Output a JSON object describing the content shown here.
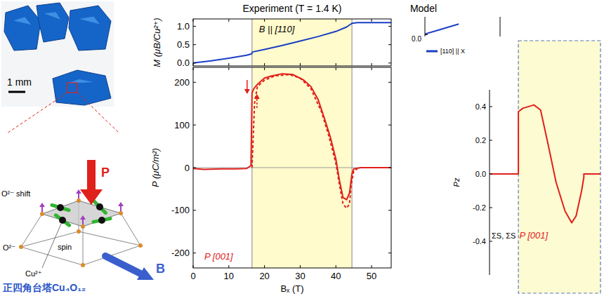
{
  "chart_data": [
    {
      "type": "line",
      "title": "Experiment (T = 1.4 K)",
      "ylabel": "M (μB/Cu²⁺)",
      "annotations": [
        "B || [110]"
      ],
      "xlim": [
        0,
        55.5
      ],
      "xticks": [
        0,
        10,
        20,
        30,
        40,
        50
      ],
      "ylim": [
        -0.08,
        1.2
      ],
      "yticks": [
        {
          "value": 0,
          "label": "0.0"
        },
        0.5,
        {
          "value": 1,
          "label": "1.0"
        }
      ],
      "tick_labels": "y",
      "shaded_range": [
        16.5,
        44.5
      ],
      "series": [
        {
          "color": "#1a3fc4",
          "line_style": "solid",
          "x": [
            0,
            5,
            10,
            15,
            16.4,
            16.6,
            20,
            25,
            30,
            35,
            40,
            43,
            44.5,
            46,
            50,
            55.5
          ],
          "values": [
            0,
            0.06,
            0.13,
            0.21,
            0.25,
            0.3,
            0.37,
            0.48,
            0.6,
            0.72,
            0.86,
            0.98,
            1.08,
            1.1,
            1.1,
            1.1
          ]
        }
      ]
    },
    {
      "type": "line",
      "xlabel": "Bₓ (T)",
      "ylabel": "P (μC/m²)",
      "annotations": [
        "P [001]"
      ],
      "xlim": [
        0,
        55.5
      ],
      "xticks": [
        0,
        10,
        20,
        30,
        40,
        50
      ],
      "ylim": [
        -235,
        235
      ],
      "yticks": [
        -200,
        -100,
        0,
        100,
        200
      ],
      "shaded_range": [
        16.5,
        44.5
      ],
      "series": [
        {
          "color": "#e0201b",
          "line_style": "solid",
          "x": [
            0,
            3,
            8,
            12,
            15,
            16.2,
            16.5,
            17,
            18,
            20,
            22,
            25,
            28,
            31,
            33,
            35,
            37,
            38.5,
            40,
            41,
            42,
            43,
            43.8,
            44.5,
            45,
            47,
            55.5
          ],
          "values": [
            -2,
            -4,
            -3,
            -3,
            -2,
            5,
            175,
            185,
            195,
            210,
            215,
            220,
            218,
            205,
            190,
            160,
            110,
            70,
            20,
            -30,
            -70,
            -75,
            -60,
            -15,
            -3,
            0,
            0
          ]
        },
        {
          "color": "#e0201b",
          "line_style": "dashed",
          "x": [
            16.5,
            17.2,
            18,
            20,
            23,
            27,
            30,
            33,
            36,
            38,
            40,
            41,
            42,
            43,
            43.8,
            44.3,
            45,
            46
          ],
          "values": [
            0,
            150,
            190,
            205,
            215,
            218,
            210,
            185,
            130,
            75,
            10,
            -40,
            -85,
            -95,
            -85,
            -40,
            -8,
            -3
          ]
        }
      ]
    },
    {
      "type": "line",
      "title": "Model",
      "xlim": [
        0,
        1
      ],
      "ylim": [
        -0.05,
        0.5
      ],
      "yticks": [
        {
          "value": 0,
          "label": "0.0"
        }
      ],
      "tick_labels": "y",
      "legend": "bottom",
      "series": [
        {
          "name": "[110] || X",
          "color": "#1a3fc4",
          "line_style": "solid",
          "x": [
            0,
            0.2,
            0.45
          ],
          "values": [
            0.02,
            0.14,
            0.3
          ]
        }
      ]
    },
    {
      "type": "line",
      "ylabel": "Pz",
      "annotations": [
        "ΣS, ΣS",
        "P [001]"
      ],
      "xlim": [
        0,
        1
      ],
      "ylim": [
        -0.6,
        0.5
      ],
      "yticks": [
        -0.4,
        -0.2,
        {
          "value": 0,
          "label": "0.0"
        },
        0.2,
        0.4
      ],
      "tick_labels": "y",
      "shaded_range": [
        0.26,
        1
      ],
      "series": [
        {
          "color": "#e0201b",
          "line_style": "solid",
          "x": [
            0,
            0.26,
            0.26,
            0.3,
            0.4,
            0.46,
            0.52,
            0.6,
            0.68,
            0.74,
            0.78,
            0.83,
            0.85,
            0.85,
            1
          ],
          "values": [
            0,
            0,
            0.37,
            0.39,
            0.41,
            0.38,
            0.2,
            -0.05,
            -0.22,
            -0.29,
            -0.25,
            -0.1,
            -0.02,
            0,
            0
          ]
        }
      ]
    }
  ],
  "figure": {
    "photo": {
      "scale_label": "1 mm"
    },
    "diagram": {
      "labels": {
        "polarization": "P",
        "oxygen_shift": "O²⁻ shift",
        "copper": "Cu²⁺",
        "spin": "spin",
        "oxygen": "O²⁻",
        "field": "B",
        "caption": "正四角台塔Cu₄O₁₂"
      }
    }
  }
}
